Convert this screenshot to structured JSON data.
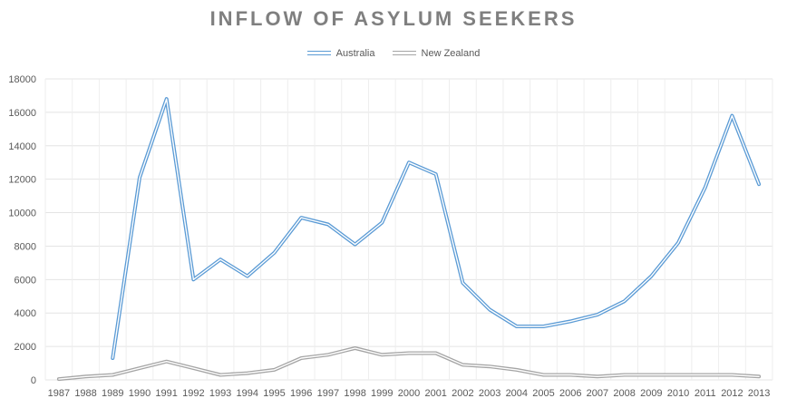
{
  "chart_data": {
    "type": "line",
    "title": "INFLOW OF ASYLUM SEEKERS",
    "xlabel": "",
    "ylabel": "",
    "ylim": [
      0,
      18000
    ],
    "yticks": [
      0,
      2000,
      4000,
      6000,
      8000,
      10000,
      12000,
      14000,
      16000,
      18000
    ],
    "grid": true,
    "legend_position": "top",
    "categories": [
      "1987",
      "1988",
      "1989",
      "1990",
      "1991",
      "1992",
      "1993",
      "1994",
      "1995",
      "1996",
      "1997",
      "1998",
      "1999",
      "2000",
      "2001",
      "2002",
      "2003",
      "2004",
      "2005",
      "2006",
      "2007",
      "2008",
      "2009",
      "2010",
      "2011",
      "2012",
      "2013"
    ],
    "series": [
      {
        "name": "Australia",
        "color": "#5b9bd5",
        "values": [
          null,
          null,
          1300,
          12100,
          16800,
          6000,
          7200,
          6200,
          7600,
          9700,
          9300,
          8100,
          9400,
          13000,
          12300,
          5800,
          4200,
          3200,
          3200,
          3500,
          3900,
          4700,
          6200,
          8200,
          11500,
          15800,
          11700
        ]
      },
      {
        "name": "New Zealand",
        "color": "#a5a5a5",
        "values": [
          50,
          200,
          300,
          700,
          1100,
          700,
          300,
          400,
          600,
          1300,
          1500,
          1900,
          1500,
          1600,
          1600,
          900,
          800,
          600,
          300,
          300,
          200,
          300,
          300,
          300,
          300,
          300,
          200
        ]
      }
    ]
  }
}
